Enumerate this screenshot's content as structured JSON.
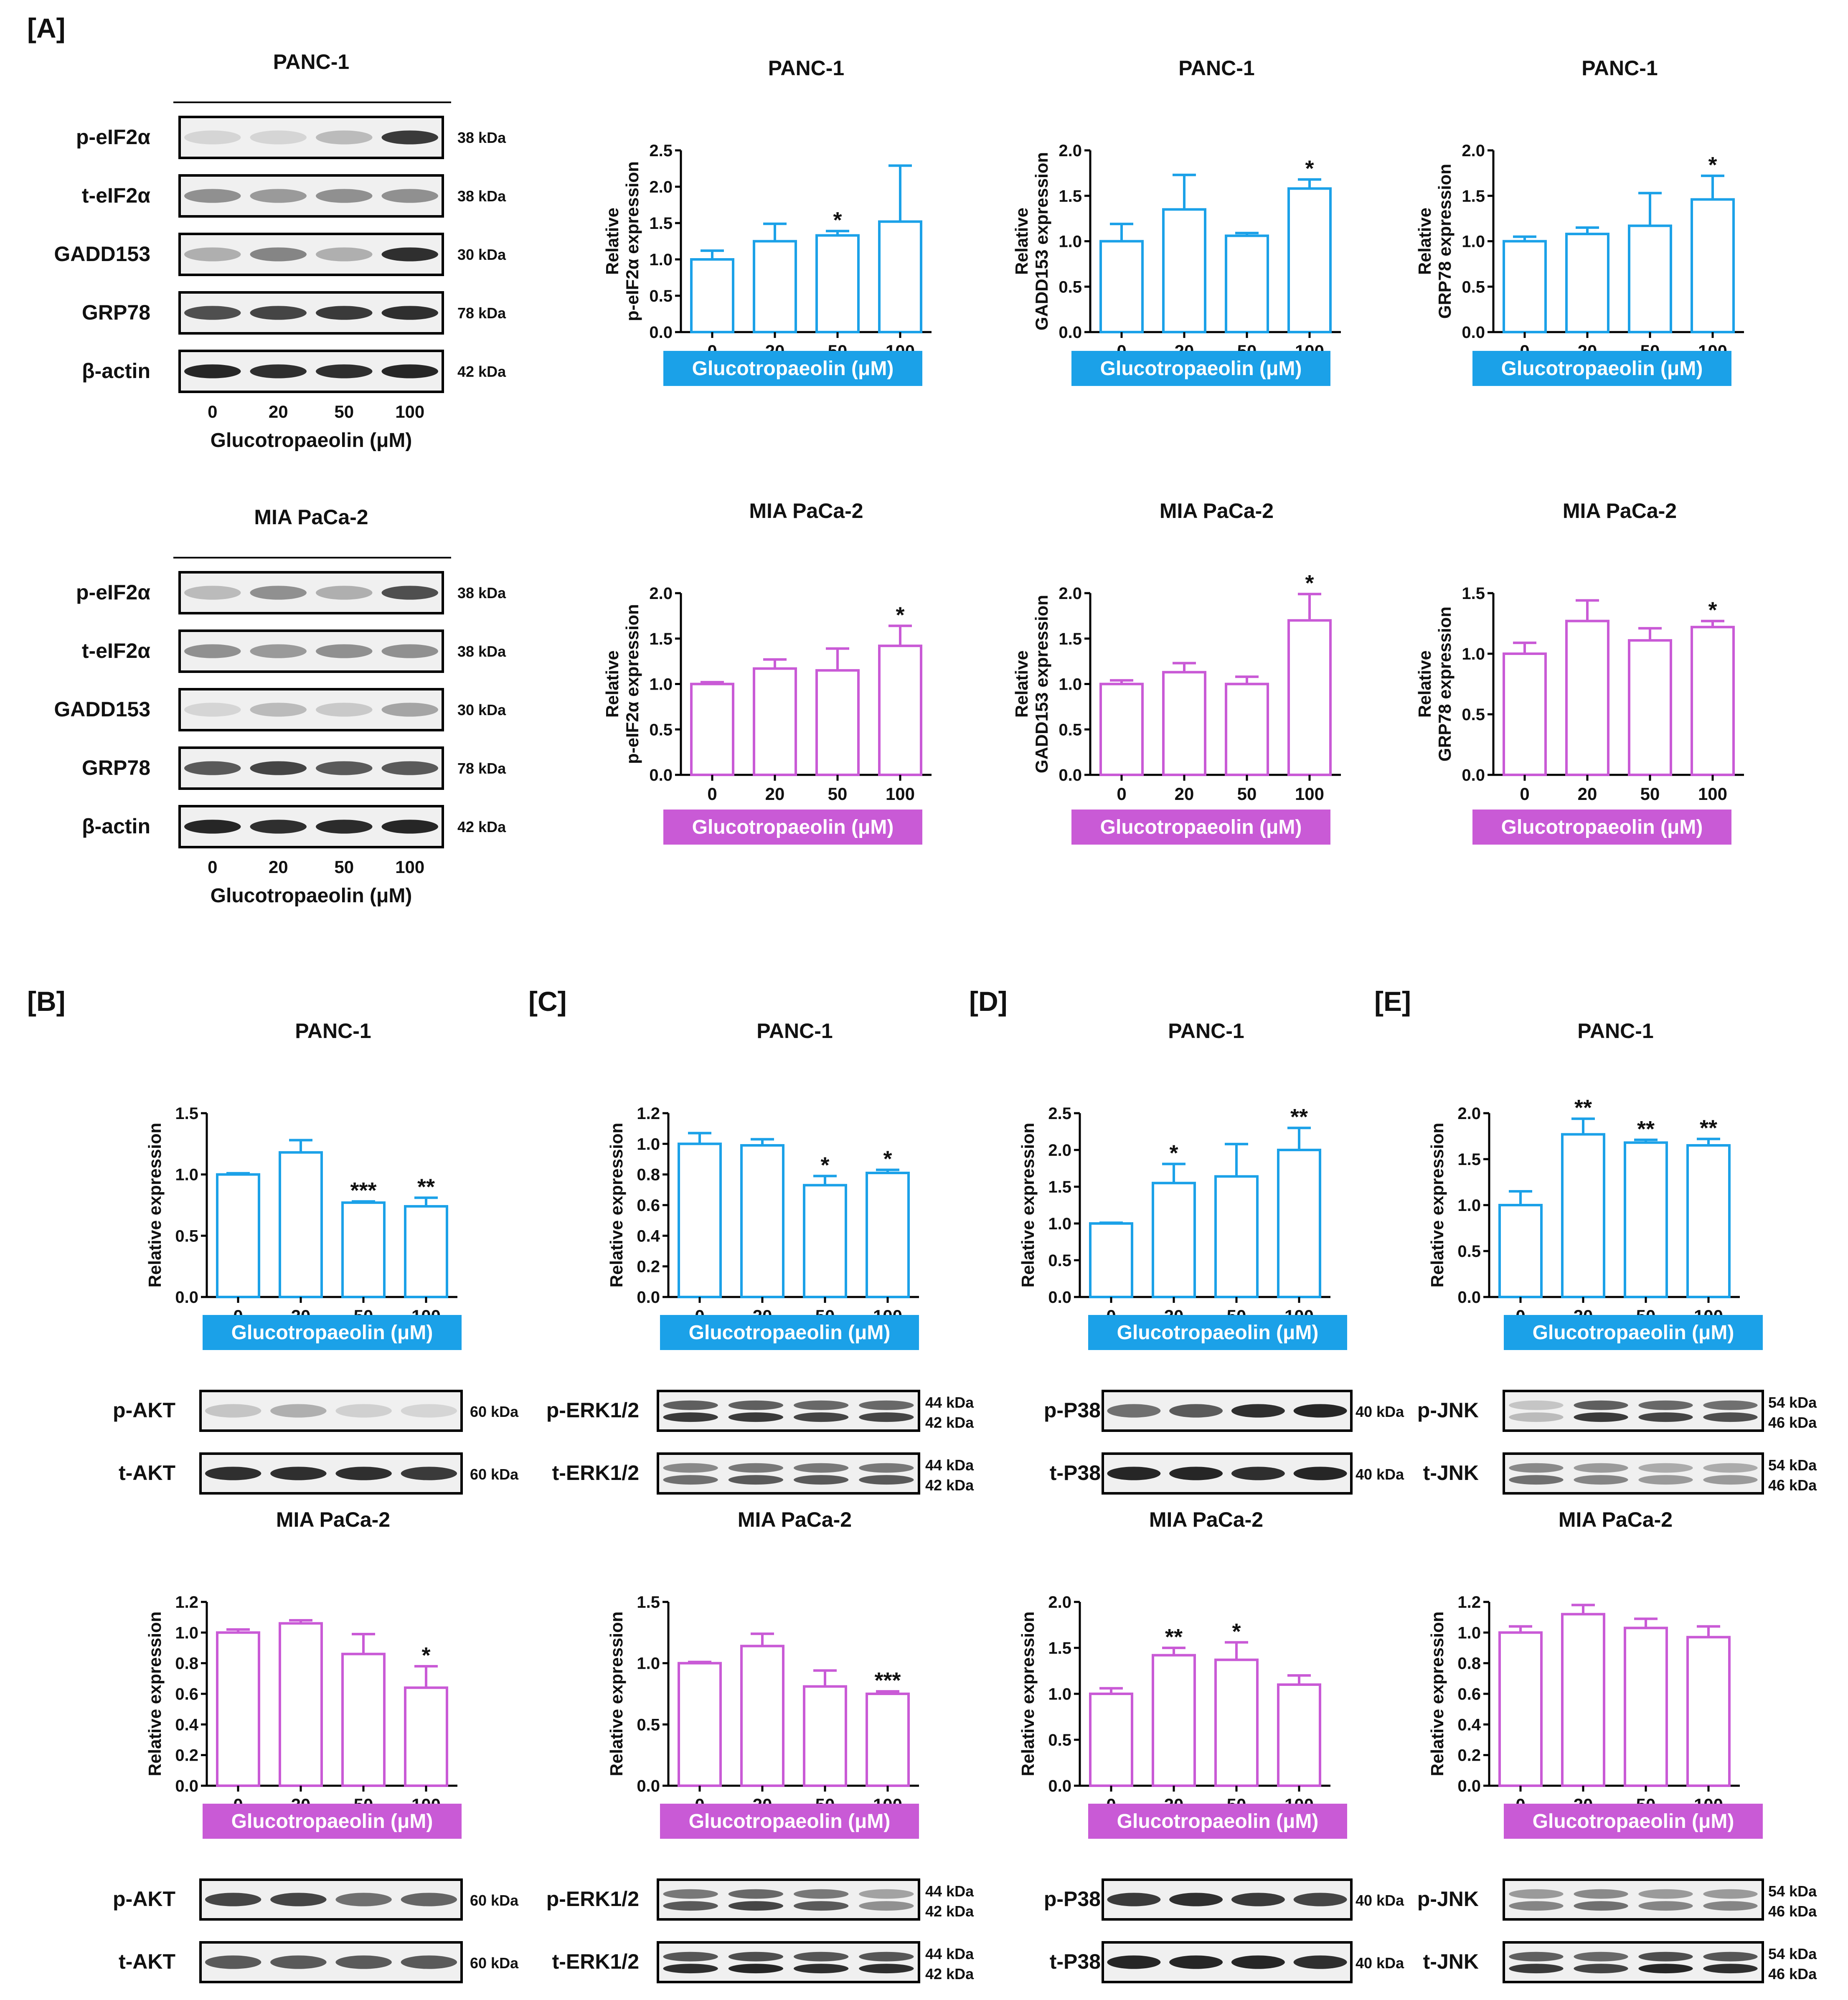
{
  "colors": {
    "panc": "#1ba1e8",
    "mia": "#c95ad6",
    "axis": "#000000",
    "blot_bg": "#f0f0f0",
    "band": "#1a1a1a"
  },
  "chart_data": [
    {
      "type": "bar",
      "panel": "A",
      "title": "PANC-1",
      "ylabel": [
        "Relative",
        "p-eIF2α expression"
      ],
      "ylim": [
        0,
        2.5
      ],
      "yticks": [
        "0.0",
        "0.5",
        "1.0",
        "1.5",
        "2.0",
        "2.5"
      ],
      "categories": [
        "0",
        "20",
        "50",
        "100"
      ],
      "values": [
        1.0,
        1.25,
        1.33,
        1.52
      ],
      "errors": [
        0.12,
        0.24,
        0.06,
        0.77
      ],
      "sig": [
        "",
        "",
        "*",
        ""
      ],
      "xlabel": "Glucotropaeolin (μM)",
      "color": "panc"
    },
    {
      "type": "bar",
      "panel": "A",
      "title": "PANC-1",
      "ylabel": [
        "Relative",
        "GADD153 expression"
      ],
      "ylim": [
        0,
        2.0
      ],
      "yticks": [
        "0.0",
        "0.5",
        "1.0",
        "1.5",
        "2.0"
      ],
      "categories": [
        "0",
        "20",
        "50",
        "100"
      ],
      "values": [
        1.0,
        1.35,
        1.06,
        1.58
      ],
      "errors": [
        0.19,
        0.38,
        0.03,
        0.1
      ],
      "sig": [
        "",
        "",
        "",
        "*"
      ],
      "xlabel": "Glucotropaeolin (μM)",
      "color": "panc"
    },
    {
      "type": "bar",
      "panel": "A",
      "title": "PANC-1",
      "ylabel": [
        "Relative",
        "GRP78 expression"
      ],
      "ylim": [
        0,
        2.0
      ],
      "yticks": [
        "0.0",
        "0.5",
        "1.0",
        "1.5",
        "2.0"
      ],
      "categories": [
        "0",
        "20",
        "50",
        "100"
      ],
      "values": [
        1.0,
        1.08,
        1.17,
        1.46
      ],
      "errors": [
        0.05,
        0.07,
        0.36,
        0.26
      ],
      "sig": [
        "",
        "",
        "",
        "*"
      ],
      "xlabel": "Glucotropaeolin (μM)",
      "color": "panc"
    },
    {
      "type": "bar",
      "panel": "A",
      "title": "MIA PaCa-2",
      "ylabel": [
        "Relative",
        "p-eIF2α expression"
      ],
      "ylim": [
        0,
        2.0
      ],
      "yticks": [
        "0.0",
        "0.5",
        "1.0",
        "1.5",
        "2.0"
      ],
      "categories": [
        "0",
        "20",
        "50",
        "100"
      ],
      "values": [
        1.0,
        1.17,
        1.15,
        1.42
      ],
      "errors": [
        0.02,
        0.1,
        0.24,
        0.22
      ],
      "sig": [
        "",
        "",
        "",
        "*"
      ],
      "xlabel": "Glucotropaeolin (μM)",
      "color": "mia"
    },
    {
      "type": "bar",
      "panel": "A",
      "title": "MIA PaCa-2",
      "ylabel": [
        "Relative",
        "GADD153 expression"
      ],
      "ylim": [
        0,
        2.0
      ],
      "yticks": [
        "0.0",
        "0.5",
        "1.0",
        "1.5",
        "2.0"
      ],
      "categories": [
        "0",
        "20",
        "50",
        "100"
      ],
      "values": [
        1.0,
        1.13,
        1.0,
        1.7
      ],
      "errors": [
        0.04,
        0.1,
        0.08,
        0.29
      ],
      "sig": [
        "",
        "",
        "",
        "*"
      ],
      "xlabel": "Glucotropaeolin (μM)",
      "color": "mia"
    },
    {
      "type": "bar",
      "panel": "A",
      "title": "MIA PaCa-2",
      "ylabel": [
        "Relative",
        "GRP78 expression"
      ],
      "ylim": [
        0,
        1.5
      ],
      "yticks": [
        "0.0",
        "0.5",
        "1.0",
        "1.5"
      ],
      "categories": [
        "0",
        "20",
        "50",
        "100"
      ],
      "values": [
        1.0,
        1.27,
        1.11,
        1.22
      ],
      "errors": [
        0.09,
        0.17,
        0.1,
        0.05
      ],
      "sig": [
        "",
        "",
        "",
        "*"
      ],
      "xlabel": "Glucotropaeolin (μM)",
      "color": "mia"
    },
    {
      "type": "bar",
      "panel": "B",
      "title": "PANC-1",
      "ylabel": [
        "Relative expression"
      ],
      "ylim": [
        0,
        1.5
      ],
      "yticks": [
        "0.0",
        "0.5",
        "1.0",
        "1.5"
      ],
      "categories": [
        "0",
        "20",
        "50",
        "100"
      ],
      "values": [
        1.0,
        1.18,
        0.77,
        0.74
      ],
      "errors": [
        0.01,
        0.1,
        0.01,
        0.07
      ],
      "sig": [
        "",
        "",
        "***",
        "**"
      ],
      "xlabel": "Glucotropaeolin (μM)",
      "color": "panc"
    },
    {
      "type": "bar",
      "panel": "C",
      "title": "PANC-1",
      "ylabel": [
        "Relative expression"
      ],
      "ylim": [
        0,
        1.2
      ],
      "yticks": [
        "0.0",
        "0.2",
        "0.4",
        "0.6",
        "0.8",
        "1.0",
        "1.2"
      ],
      "categories": [
        "0",
        "20",
        "50",
        "100"
      ],
      "values": [
        1.0,
        0.99,
        0.73,
        0.81
      ],
      "errors": [
        0.07,
        0.04,
        0.06,
        0.02
      ],
      "sig": [
        "",
        "",
        "*",
        "*"
      ],
      "xlabel": "Glucotropaeolin (μM)",
      "color": "panc"
    },
    {
      "type": "bar",
      "panel": "D",
      "title": "PANC-1",
      "ylabel": [
        "Relative expression"
      ],
      "ylim": [
        0,
        2.5
      ],
      "yticks": [
        "0.0",
        "0.5",
        "1.0",
        "1.5",
        "2.0",
        "2.5"
      ],
      "categories": [
        "0",
        "20",
        "50",
        "100"
      ],
      "values": [
        1.0,
        1.55,
        1.64,
        2.0
      ],
      "errors": [
        0.01,
        0.26,
        0.44,
        0.3
      ],
      "sig": [
        "",
        "*",
        "",
        "**"
      ],
      "xlabel": "Glucotropaeolin (μM)",
      "color": "panc"
    },
    {
      "type": "bar",
      "panel": "E",
      "title": "PANC-1",
      "ylabel": [
        "Relative expression"
      ],
      "ylim": [
        0,
        2.0
      ],
      "yticks": [
        "0.0",
        "0.5",
        "1.0",
        "1.5",
        "2.0"
      ],
      "categories": [
        "0",
        "20",
        "50",
        "100"
      ],
      "values": [
        1.0,
        1.77,
        1.68,
        1.65
      ],
      "errors": [
        0.15,
        0.17,
        0.03,
        0.07
      ],
      "sig": [
        "",
        "**",
        "**",
        "**"
      ],
      "xlabel": "Glucotropaeolin (μM)",
      "color": "panc"
    },
    {
      "type": "bar",
      "panel": "B",
      "title": "MIA PaCa-2",
      "ylabel": [
        "Relative expression"
      ],
      "ylim": [
        0,
        1.2
      ],
      "yticks": [
        "0.0",
        "0.2",
        "0.4",
        "0.6",
        "0.8",
        "1.0",
        "1.2"
      ],
      "categories": [
        "0",
        "20",
        "50",
        "100"
      ],
      "values": [
        1.0,
        1.06,
        0.86,
        0.64
      ],
      "errors": [
        0.02,
        0.02,
        0.13,
        0.14
      ],
      "sig": [
        "",
        "",
        "",
        "*"
      ],
      "xlabel": "Glucotropaeolin (μM)",
      "color": "mia"
    },
    {
      "type": "bar",
      "panel": "C",
      "title": "MIA PaCa-2",
      "ylabel": [
        "Relative expression"
      ],
      "ylim": [
        0,
        1.5
      ],
      "yticks": [
        "0.0",
        "0.5",
        "1.0",
        "1.5"
      ],
      "categories": [
        "0",
        "20",
        "50",
        "100"
      ],
      "values": [
        1.0,
        1.14,
        0.81,
        0.75
      ],
      "errors": [
        0.01,
        0.1,
        0.13,
        0.02
      ],
      "sig": [
        "",
        "",
        "",
        "***"
      ],
      "xlabel": "Glucotropaeolin (μM)",
      "color": "mia"
    },
    {
      "type": "bar",
      "panel": "D",
      "title": "MIA PaCa-2",
      "ylabel": [
        "Relative expression"
      ],
      "ylim": [
        0,
        2.0
      ],
      "yticks": [
        "0.0",
        "0.5",
        "1.0",
        "1.5",
        "2.0"
      ],
      "categories": [
        "0",
        "20",
        "50",
        "100"
      ],
      "values": [
        1.0,
        1.42,
        1.37,
        1.1
      ],
      "errors": [
        0.06,
        0.08,
        0.19,
        0.1
      ],
      "sig": [
        "",
        "**",
        "*",
        ""
      ],
      "xlabel": "Glucotropaeolin (μM)",
      "color": "mia"
    },
    {
      "type": "bar",
      "panel": "E",
      "title": "MIA PaCa-2",
      "ylabel": [
        "Relative expression"
      ],
      "ylim": [
        0,
        1.2
      ],
      "yticks": [
        "0.0",
        "0.2",
        "0.4",
        "0.6",
        "0.8",
        "1.0",
        "1.2"
      ],
      "categories": [
        "0",
        "20",
        "50",
        "100"
      ],
      "values": [
        1.0,
        1.12,
        1.03,
        0.97
      ],
      "errors": [
        0.04,
        0.06,
        0.06,
        0.07
      ],
      "sig": [
        "",
        "",
        "",
        ""
      ],
      "xlabel": "Glucotropaeolin (μM)",
      "color": "mia"
    }
  ],
  "panel_labels": [
    "[A]",
    "[B]",
    "[C]",
    "[D]",
    "[E]"
  ],
  "blots": [
    {
      "title": "PANC-1",
      "xticks": [
        "0",
        "20",
        "50",
        "100"
      ],
      "xlabel": "Glucotropaeolin (μM)",
      "rows": [
        {
          "label": "p-eIF2α",
          "mw": [
            "38 kDa"
          ],
          "intensity": [
            0.12,
            0.12,
            0.25,
            0.85
          ]
        },
        {
          "label": "t-eIF2α",
          "mw": [
            "38 kDa"
          ],
          "intensity": [
            0.45,
            0.4,
            0.45,
            0.45
          ]
        },
        {
          "label": "GADD153",
          "mw": [
            "30 kDa"
          ],
          "intensity": [
            0.3,
            0.5,
            0.3,
            0.9
          ]
        },
        {
          "label": "GRP78",
          "mw": [
            "78 kDa"
          ],
          "intensity": [
            0.75,
            0.8,
            0.85,
            0.9
          ]
        },
        {
          "label": "β-actin",
          "mw": [
            "42 kDa"
          ],
          "intensity": [
            0.95,
            0.9,
            0.9,
            0.95
          ]
        }
      ]
    },
    {
      "title": "MIA PaCa-2",
      "xticks": [
        "0",
        "20",
        "50",
        "100"
      ],
      "xlabel": "Glucotropaeolin (μM)",
      "rows": [
        {
          "label": "p-eIF2α",
          "mw": [
            "38 kDa"
          ],
          "intensity": [
            0.25,
            0.45,
            0.3,
            0.75
          ]
        },
        {
          "label": "t-eIF2α",
          "mw": [
            "38 kDa"
          ],
          "intensity": [
            0.45,
            0.4,
            0.45,
            0.45
          ]
        },
        {
          "label": "GADD153",
          "mw": [
            "30 kDa"
          ],
          "intensity": [
            0.12,
            0.25,
            0.18,
            0.35
          ]
        },
        {
          "label": "GRP78",
          "mw": [
            "78 kDa"
          ],
          "intensity": [
            0.7,
            0.8,
            0.7,
            0.7
          ]
        },
        {
          "label": "β-actin",
          "mw": [
            "42 kDa"
          ],
          "intensity": [
            0.95,
            0.9,
            0.92,
            0.95
          ]
        }
      ]
    }
  ],
  "small_blots": [
    {
      "label": "p-AKT",
      "mw": [
        "60 kDa"
      ],
      "intensity": [
        0.2,
        0.3,
        0.15,
        0.12
      ]
    },
    {
      "label": "t-AKT",
      "mw": [
        "60 kDa"
      ],
      "intensity": [
        0.9,
        0.9,
        0.9,
        0.85
      ]
    },
    {
      "label": "p-ERK1/2",
      "mw": [
        "44 kDa",
        "42 kDa"
      ],
      "intensity": [
        0.85,
        0.85,
        0.8,
        0.8
      ]
    },
    {
      "label": "t-ERK1/2",
      "mw": [
        "44 kDa",
        "42 kDa"
      ],
      "intensity": [
        0.6,
        0.7,
        0.7,
        0.7
      ]
    },
    {
      "label": "p-P38",
      "mw": [
        "40 kDa"
      ],
      "intensity": [
        0.6,
        0.7,
        0.9,
        0.95
      ]
    },
    {
      "label": "t-P38",
      "mw": [
        "40 kDa"
      ],
      "intensity": [
        0.95,
        0.95,
        0.9,
        0.95
      ]
    },
    {
      "label": "p-JNK",
      "mw": [
        "54 kDa",
        "46 kDa"
      ],
      "intensity": [
        0.25,
        0.85,
        0.8,
        0.75
      ]
    },
    {
      "label": "t-JNK",
      "mw": [
        "54 kDa",
        "46 kDa"
      ],
      "intensity": [
        0.6,
        0.5,
        0.4,
        0.4
      ]
    },
    {
      "label": "p-AKT",
      "mw": [
        "60 kDa"
      ],
      "intensity": [
        0.8,
        0.8,
        0.6,
        0.65
      ]
    },
    {
      "label": "t-AKT",
      "mw": [
        "60 kDa"
      ],
      "intensity": [
        0.7,
        0.7,
        0.7,
        0.7
      ]
    },
    {
      "label": "p-ERK1/2",
      "mw": [
        "44 kDa",
        "42 kDa"
      ],
      "intensity": [
        0.7,
        0.8,
        0.7,
        0.45
      ]
    },
    {
      "label": "t-ERK1/2",
      "mw": [
        "44 kDa",
        "42 kDa"
      ],
      "intensity": [
        0.9,
        0.95,
        0.9,
        0.9
      ]
    },
    {
      "label": "p-P38",
      "mw": [
        "40 kDa"
      ],
      "intensity": [
        0.85,
        0.9,
        0.85,
        0.8
      ]
    },
    {
      "label": "t-P38",
      "mw": [
        "40 kDa"
      ],
      "intensity": [
        0.95,
        0.95,
        0.95,
        0.9
      ]
    },
    {
      "label": "p-JNK",
      "mw": [
        "54 kDa",
        "46 kDa"
      ],
      "intensity": [
        0.5,
        0.6,
        0.5,
        0.5
      ]
    },
    {
      "label": "t-JNK",
      "mw": [
        "54 kDa",
        "46 kDa"
      ],
      "intensity": [
        0.85,
        0.8,
        0.95,
        0.9
      ]
    }
  ]
}
